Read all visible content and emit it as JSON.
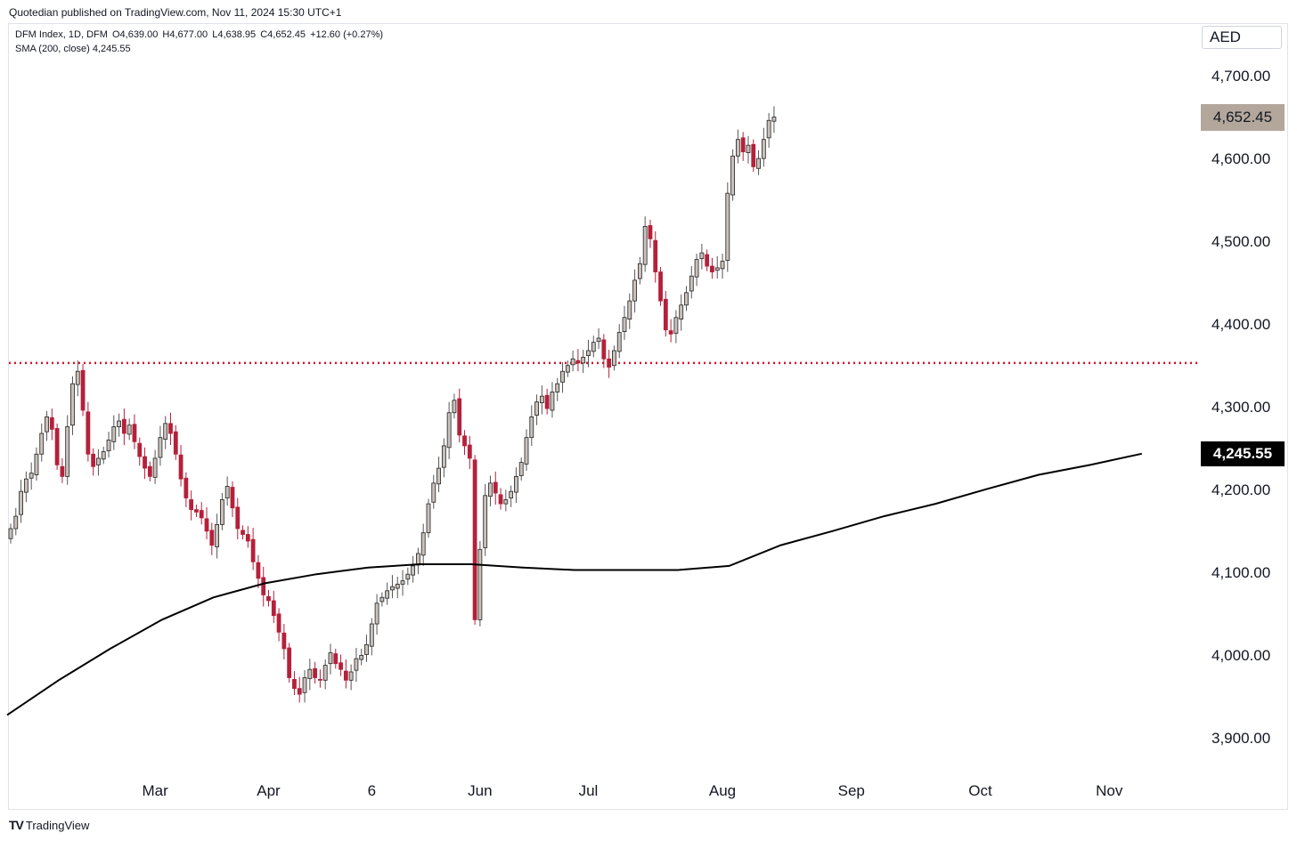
{
  "header": {
    "published": "Quotedian published on TradingView.com, Nov 11, 2024 15:30 UTC+1",
    "symbol_legend": [
      "DFM Index, 1D, DFM",
      "O4,639.00",
      "H4,677.00",
      "L4,638.95",
      "C4,652.45",
      "+12.60 (+0.27%)"
    ],
    "sma_legend": "SMA (200, close)  4,245.55",
    "currency": "AED"
  },
  "footer": {
    "brand": "TradingView"
  },
  "colors": {
    "up": "#c9c1bb",
    "down": "#b5203a",
    "sma": "#000000",
    "level": "#d3132b",
    "last_badge": "#b3a79c"
  },
  "chart_data": {
    "type": "candlestick",
    "symbol": "DFM Index",
    "interval": "1D",
    "last_price": "4,652.45",
    "sma_value": "4,245.55",
    "horizontal_level": 4355,
    "ylim": [
      3833,
      4748
    ],
    "y_ticks": [
      "4,700.00",
      "4,600.00",
      "4,500.00",
      "4,400.00",
      "4,300.00",
      "4,200.00",
      "4,100.00",
      "4,000.00",
      "3,900.00"
    ],
    "y_tick_values": [
      4700,
      4600,
      4500,
      4400,
      4300,
      4200,
      4100,
      4000,
      3900
    ],
    "x_ticks": [
      {
        "label": "Mar",
        "bar": 28
      },
      {
        "label": "Apr",
        "bar": 50
      },
      {
        "label": "6",
        "bar": 70
      },
      {
        "label": "Jun",
        "bar": 91
      },
      {
        "label": "Jul",
        "bar": 112
      },
      {
        "label": "Aug",
        "bar": 138
      },
      {
        "label": "Sep",
        "bar": 163
      },
      {
        "label": "Oct",
        "bar": 188
      },
      {
        "label": "Nov",
        "bar": 213
      }
    ],
    "close_path": [
      4155,
      4170,
      4200,
      4215,
      4222,
      4245,
      4270,
      4290,
      4275,
      4232,
      4218,
      4278,
      4330,
      4345,
      4298,
      4245,
      4230,
      4240,
      4248,
      4262,
      4278,
      4285,
      4270,
      4280,
      4260,
      4242,
      4228,
      4218,
      4240,
      4265,
      4282,
      4270,
      4245,
      4215,
      4192,
      4178,
      4175,
      4168,
      4152,
      4135,
      4160,
      4190,
      4206,
      4180,
      4155,
      4148,
      4140,
      4115,
      4095,
      4075,
      4068,
      4050,
      4030,
      4010,
      3975,
      3962,
      3955,
      3975,
      3985,
      3975,
      3972,
      3990,
      4005,
      3992,
      3985,
      3972,
      3982,
      3998,
      4002,
      4015,
      4040,
      4065,
      4072,
      4080,
      4085,
      4088,
      4092,
      4100,
      4110,
      4125,
      4150,
      4185,
      4210,
      4228,
      4255,
      4295,
      4310,
      4268,
      4255,
      4240,
      4045,
      4130,
      4195,
      4210,
      4198,
      4185,
      4190,
      4200,
      4218,
      4235,
      4265,
      4290,
      4308,
      4315,
      4300,
      4320,
      4330,
      4345,
      4352,
      4360,
      4355,
      4362,
      4370,
      4380,
      4385,
      4360,
      4350,
      4370,
      4392,
      4410,
      4430,
      4455,
      4475,
      4520,
      4505,
      4465,
      4430,
      4395,
      4390,
      4410,
      4425,
      4440,
      4460,
      4480,
      4488,
      4472,
      4465,
      4470,
      4478,
      4560,
      4605,
      4625,
      4610,
      4618,
      4592,
      4602,
      4625,
      4648,
      4652
    ],
    "sma_series": [
      [
        0,
        3930
      ],
      [
        10,
        3972
      ],
      [
        20,
        4010
      ],
      [
        30,
        4045
      ],
      [
        40,
        4072
      ],
      [
        50,
        4089
      ],
      [
        60,
        4100
      ],
      [
        70,
        4108
      ],
      [
        80,
        4112
      ],
      [
        90,
        4112
      ],
      [
        100,
        4108
      ],
      [
        110,
        4105
      ],
      [
        120,
        4105
      ],
      [
        130,
        4105
      ],
      [
        140,
        4110
      ],
      [
        150,
        4135
      ],
      [
        160,
        4152
      ],
      [
        170,
        4170
      ],
      [
        180,
        4185
      ],
      [
        190,
        4203
      ],
      [
        200,
        4220
      ],
      [
        210,
        4232
      ],
      [
        220,
        4245.55
      ]
    ]
  }
}
